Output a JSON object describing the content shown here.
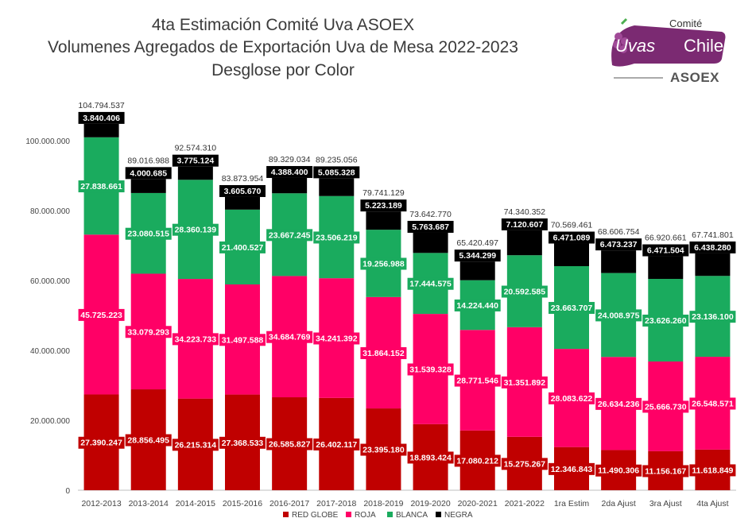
{
  "title": {
    "line1": "4ta Estimación Comité Uva ASOEX",
    "line2": "Volumenes Agregados de Exportación Uva de Mesa 2022-2023",
    "line3": "Desglose por Color"
  },
  "logo": {
    "comite": "Comité",
    "uvas": "Uvas",
    "chile": "Chile",
    "asoex": "ASOEX"
  },
  "colors": {
    "red_globe": "#c00000",
    "roja": "#ff0066",
    "blanca": "#1aab5e",
    "negra": "#000000"
  },
  "chart_data": {
    "type": "bar",
    "stacked": true,
    "ylim": [
      0,
      100000000
    ],
    "yticks": [
      "0",
      "20.000.000",
      "40.000.000",
      "60.000.000",
      "80.000.000",
      "100.000.000"
    ],
    "legend_position": "bottom",
    "categories": [
      "2012-2013",
      "2013-2014",
      "2014-2015",
      "2015-2016",
      "2016-2017",
      "2017-2018",
      "2018-2019",
      "2019-2020",
      "2020-2021",
      "2021-2022",
      "1ra Estim",
      "2da Ajust",
      "3ra Ajust",
      "4ta Ajust"
    ],
    "totals": [
      104794537,
      89016988,
      92574310,
      83873954,
      89329034,
      89235056,
      79741129,
      73642770,
      65420497,
      74340352,
      70569461,
      68606754,
      66920661,
      67741801
    ],
    "total_labels": [
      "104.794.537",
      "89.016.988",
      "92.574.310",
      "83.873.954",
      "89.329.034",
      "89.235.056",
      "79.741.129",
      "73.642.770",
      "65.420.497",
      "74.340.352",
      "70.569.461",
      "68.606.754",
      "66.920.661",
      "67.741.801"
    ],
    "series": [
      {
        "name": "RED GLOBE",
        "values": [
          27390247,
          28856495,
          26215314,
          27368533,
          26585827,
          26402117,
          23395180,
          18893424,
          17080212,
          15275267,
          12346843,
          11490306,
          11156167,
          11618849
        ],
        "labels": [
          "27.390.247",
          "28.856.495",
          "26.215.314",
          "27.368.533",
          "26.585.827",
          "26.402.117",
          "23.395.180",
          "18.893.424",
          "17.080.212",
          "15.275.267",
          "12.346.843",
          "11.490.306",
          "11.156.167",
          "11.618.849"
        ]
      },
      {
        "name": "ROJA",
        "values": [
          45725223,
          33079293,
          34223733,
          31497588,
          34684769,
          34241392,
          31864152,
          31539328,
          28771546,
          31351892,
          28083622,
          26634236,
          25666730,
          26548571
        ],
        "labels": [
          "45.725.223",
          "33.079.293",
          "34.223.733",
          "31.497.588",
          "34.684.769",
          "34.241.392",
          "31.864.152",
          "31.539.328",
          "28.771.546",
          "31.351.892",
          "28.083.622",
          "26.634.236",
          "25.666.730",
          "26.548.571"
        ]
      },
      {
        "name": "BLANCA",
        "values": [
          27838661,
          23080515,
          28360139,
          21400527,
          23667245,
          23506219,
          19256988,
          17444575,
          14224440,
          20592585,
          23663707,
          24008975,
          23626260,
          23136100
        ],
        "labels": [
          "27.838.661",
          "23.080.515",
          "28.360.139",
          "21.400.527",
          "23.667.245",
          "23.506.219",
          "19.256.988",
          "17.444.575",
          "14.224.440",
          "20.592.585",
          "23.663.707",
          "24.008.975",
          "23.626.260",
          "23.136.100"
        ]
      },
      {
        "name": "NEGRA",
        "values": [
          3840406,
          4000685,
          3775124,
          3605670,
          4388400,
          5085328,
          5223189,
          5763687,
          5344299,
          7120607,
          6471089,
          6473237,
          6471504,
          6438280
        ],
        "labels": [
          "3.840.406",
          "4.000.685",
          "3.775.124",
          "3.605.670",
          "4.388.400",
          "5.085.328",
          "5.223.189",
          "5.763.687",
          "5.344.299",
          "7.120.607",
          "6.471.089",
          "6.473.237",
          "6.471.504",
          "6.438.280"
        ]
      }
    ]
  }
}
